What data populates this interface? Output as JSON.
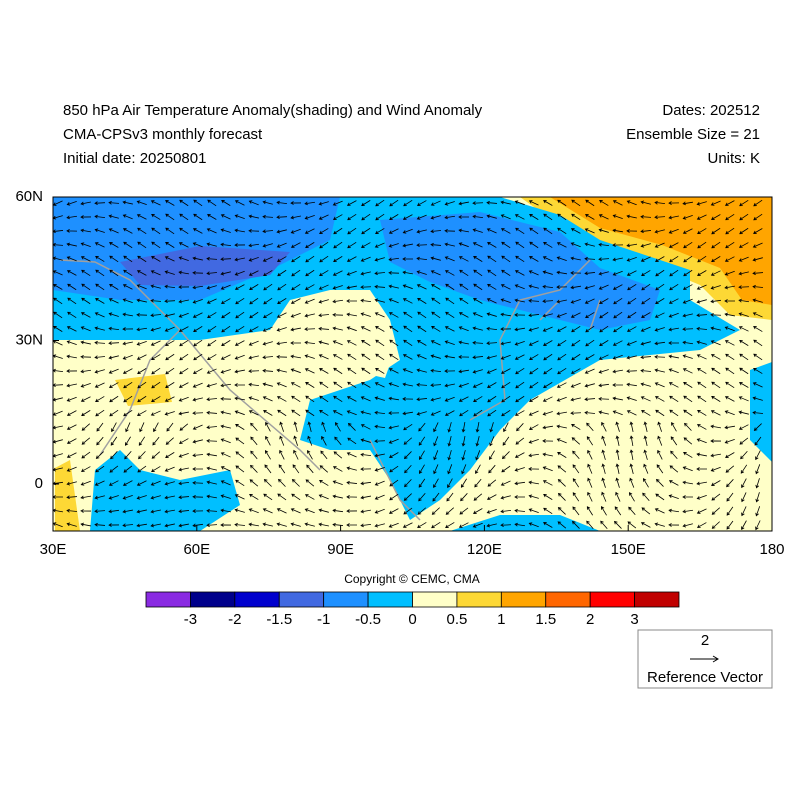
{
  "header": {
    "title": "850 hPa Air Temperature Anomaly(shading) and Wind Anomaly",
    "subtitle": "CMA-CPSv3 monthly forecast",
    "initial_date": "Initial date: 20250801",
    "dates": "Dates: 202512",
    "ensemble": "Ensemble Size = 21",
    "units": "Units: K"
  },
  "map": {
    "lon_labels": [
      "30E",
      "60E",
      "90E",
      "120E",
      "150E",
      "180"
    ],
    "lat_labels": [
      "60N",
      "30N",
      "0"
    ]
  },
  "copyright": "Copyright © CEMC, CMA",
  "colorbar": {
    "colors": [
      "#8a2be2",
      "#00008b",
      "#0000cd",
      "#4169e1",
      "#1e90ff",
      "#00bfff",
      "#ffffc8",
      "#fdd835",
      "#ffa500",
      "#ff6600",
      "#ff0000",
      "#c00000"
    ],
    "labels": [
      "-3",
      "-2",
      "-1.5",
      "-1",
      "-0.5",
      "0",
      "0.5",
      "1",
      "1.5",
      "2",
      "3"
    ]
  },
  "reference_vector": {
    "magnitude": "2",
    "label": "Reference Vector"
  }
}
